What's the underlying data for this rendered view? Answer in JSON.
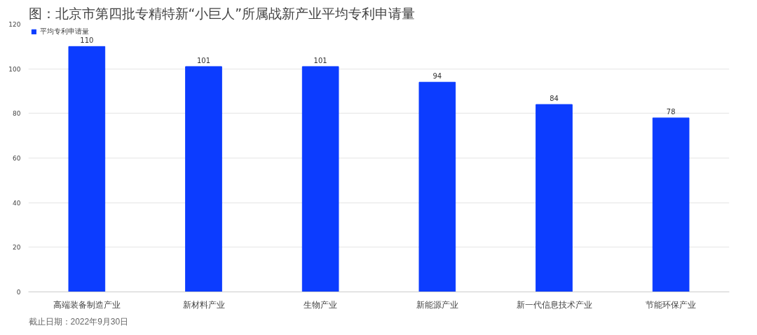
{
  "chart_data": {
    "type": "bar",
    "title": "图：北京市第四批专精特新“小巨人”所属战新产业平均专利申请量",
    "categories": [
      "高端装备制造产业",
      "新材料产业",
      "生物产业",
      "新能源产业",
      "新一代信息技术产业",
      "节能环保产业"
    ],
    "series": [
      {
        "name": "平均专利申请量",
        "color": "#0c3cff",
        "values": [
          110,
          101,
          101,
          94,
          84,
          78
        ]
      }
    ],
    "ylim": [
      0,
      120
    ],
    "yticks": [
      0,
      20,
      40,
      60,
      80,
      100,
      120
    ],
    "grid": "y",
    "legend": "top left",
    "data_labels": true,
    "annotations": [
      "截止日期：2022年9月30日"
    ]
  }
}
